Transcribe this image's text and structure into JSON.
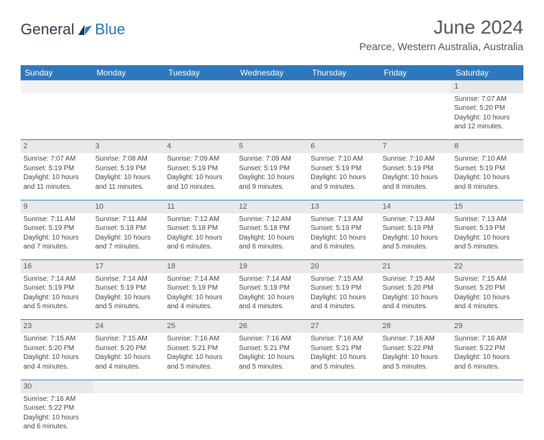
{
  "logo": {
    "text_dark": "General",
    "text_blue": "Blue"
  },
  "title": "June 2024",
  "location": "Pearce, Western Australia, Australia",
  "colors": {
    "header_bg": "#2e79bd",
    "header_text": "#ffffff",
    "daynum_bg": "#e9e9e9",
    "border": "#2e79bd"
  },
  "day_headers": [
    "Sunday",
    "Monday",
    "Tuesday",
    "Wednesday",
    "Thursday",
    "Friday",
    "Saturday"
  ],
  "weeks": [
    [
      null,
      null,
      null,
      null,
      null,
      null,
      {
        "n": "1",
        "sr": "Sunrise: 7:07 AM",
        "ss": "Sunset: 5:20 PM",
        "d1": "Daylight: 10 hours",
        "d2": "and 12 minutes."
      }
    ],
    [
      {
        "n": "2",
        "sr": "Sunrise: 7:07 AM",
        "ss": "Sunset: 5:19 PM",
        "d1": "Daylight: 10 hours",
        "d2": "and 11 minutes."
      },
      {
        "n": "3",
        "sr": "Sunrise: 7:08 AM",
        "ss": "Sunset: 5:19 PM",
        "d1": "Daylight: 10 hours",
        "d2": "and 11 minutes."
      },
      {
        "n": "4",
        "sr": "Sunrise: 7:09 AM",
        "ss": "Sunset: 5:19 PM",
        "d1": "Daylight: 10 hours",
        "d2": "and 10 minutes."
      },
      {
        "n": "5",
        "sr": "Sunrise: 7:09 AM",
        "ss": "Sunset: 5:19 PM",
        "d1": "Daylight: 10 hours",
        "d2": "and 9 minutes."
      },
      {
        "n": "6",
        "sr": "Sunrise: 7:10 AM",
        "ss": "Sunset: 5:19 PM",
        "d1": "Daylight: 10 hours",
        "d2": "and 9 minutes."
      },
      {
        "n": "7",
        "sr": "Sunrise: 7:10 AM",
        "ss": "Sunset: 5:19 PM",
        "d1": "Daylight: 10 hours",
        "d2": "and 8 minutes."
      },
      {
        "n": "8",
        "sr": "Sunrise: 7:10 AM",
        "ss": "Sunset: 5:19 PM",
        "d1": "Daylight: 10 hours",
        "d2": "and 8 minutes."
      }
    ],
    [
      {
        "n": "9",
        "sr": "Sunrise: 7:11 AM",
        "ss": "Sunset: 5:19 PM",
        "d1": "Daylight: 10 hours",
        "d2": "and 7 minutes."
      },
      {
        "n": "10",
        "sr": "Sunrise: 7:11 AM",
        "ss": "Sunset: 5:18 PM",
        "d1": "Daylight: 10 hours",
        "d2": "and 7 minutes."
      },
      {
        "n": "11",
        "sr": "Sunrise: 7:12 AM",
        "ss": "Sunset: 5:18 PM",
        "d1": "Daylight: 10 hours",
        "d2": "and 6 minutes."
      },
      {
        "n": "12",
        "sr": "Sunrise: 7:12 AM",
        "ss": "Sunset: 5:18 PM",
        "d1": "Daylight: 10 hours",
        "d2": "and 6 minutes."
      },
      {
        "n": "13",
        "sr": "Sunrise: 7:13 AM",
        "ss": "Sunset: 5:19 PM",
        "d1": "Daylight: 10 hours",
        "d2": "and 6 minutes."
      },
      {
        "n": "14",
        "sr": "Sunrise: 7:13 AM",
        "ss": "Sunset: 5:19 PM",
        "d1": "Daylight: 10 hours",
        "d2": "and 5 minutes."
      },
      {
        "n": "15",
        "sr": "Sunrise: 7:13 AM",
        "ss": "Sunset: 5:19 PM",
        "d1": "Daylight: 10 hours",
        "d2": "and 5 minutes."
      }
    ],
    [
      {
        "n": "16",
        "sr": "Sunrise: 7:14 AM",
        "ss": "Sunset: 5:19 PM",
        "d1": "Daylight: 10 hours",
        "d2": "and 5 minutes."
      },
      {
        "n": "17",
        "sr": "Sunrise: 7:14 AM",
        "ss": "Sunset: 5:19 PM",
        "d1": "Daylight: 10 hours",
        "d2": "and 5 minutes."
      },
      {
        "n": "18",
        "sr": "Sunrise: 7:14 AM",
        "ss": "Sunset: 5:19 PM",
        "d1": "Daylight: 10 hours",
        "d2": "and 4 minutes."
      },
      {
        "n": "19",
        "sr": "Sunrise: 7:14 AM",
        "ss": "Sunset: 5:19 PM",
        "d1": "Daylight: 10 hours",
        "d2": "and 4 minutes."
      },
      {
        "n": "20",
        "sr": "Sunrise: 7:15 AM",
        "ss": "Sunset: 5:19 PM",
        "d1": "Daylight: 10 hours",
        "d2": "and 4 minutes."
      },
      {
        "n": "21",
        "sr": "Sunrise: 7:15 AM",
        "ss": "Sunset: 5:20 PM",
        "d1": "Daylight: 10 hours",
        "d2": "and 4 minutes."
      },
      {
        "n": "22",
        "sr": "Sunrise: 7:15 AM",
        "ss": "Sunset: 5:20 PM",
        "d1": "Daylight: 10 hours",
        "d2": "and 4 minutes."
      }
    ],
    [
      {
        "n": "23",
        "sr": "Sunrise: 7:15 AM",
        "ss": "Sunset: 5:20 PM",
        "d1": "Daylight: 10 hours",
        "d2": "and 4 minutes."
      },
      {
        "n": "24",
        "sr": "Sunrise: 7:15 AM",
        "ss": "Sunset: 5:20 PM",
        "d1": "Daylight: 10 hours",
        "d2": "and 4 minutes."
      },
      {
        "n": "25",
        "sr": "Sunrise: 7:16 AM",
        "ss": "Sunset: 5:21 PM",
        "d1": "Daylight: 10 hours",
        "d2": "and 5 minutes."
      },
      {
        "n": "26",
        "sr": "Sunrise: 7:16 AM",
        "ss": "Sunset: 5:21 PM",
        "d1": "Daylight: 10 hours",
        "d2": "and 5 minutes."
      },
      {
        "n": "27",
        "sr": "Sunrise: 7:16 AM",
        "ss": "Sunset: 5:21 PM",
        "d1": "Daylight: 10 hours",
        "d2": "and 5 minutes."
      },
      {
        "n": "28",
        "sr": "Sunrise: 7:16 AM",
        "ss": "Sunset: 5:22 PM",
        "d1": "Daylight: 10 hours",
        "d2": "and 5 minutes."
      },
      {
        "n": "29",
        "sr": "Sunrise: 7:16 AM",
        "ss": "Sunset: 5:22 PM",
        "d1": "Daylight: 10 hours",
        "d2": "and 6 minutes."
      }
    ],
    [
      {
        "n": "30",
        "sr": "Sunrise: 7:16 AM",
        "ss": "Sunset: 5:22 PM",
        "d1": "Daylight: 10 hours",
        "d2": "and 6 minutes."
      },
      null,
      null,
      null,
      null,
      null,
      null
    ]
  ]
}
